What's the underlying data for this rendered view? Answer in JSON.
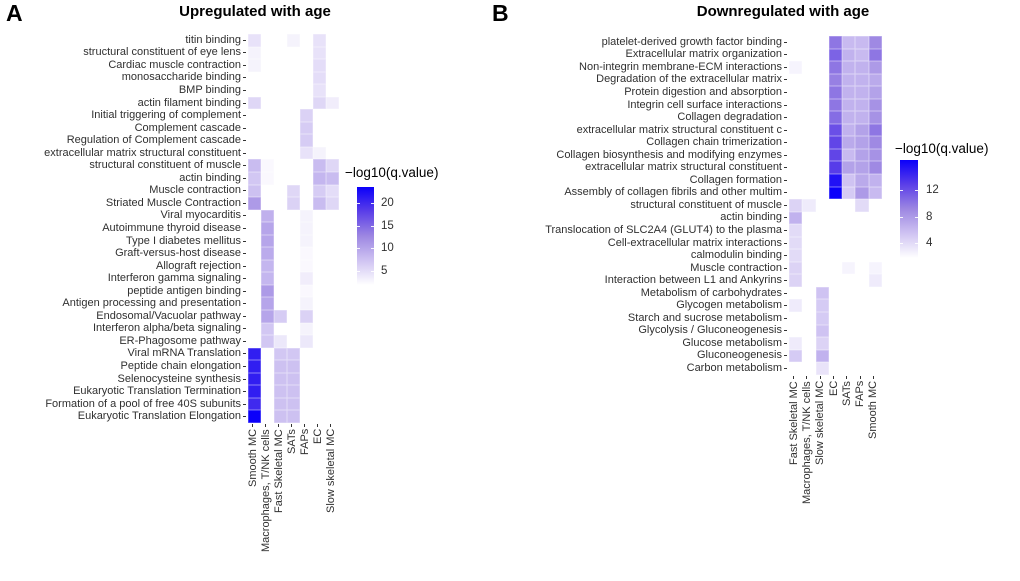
{
  "chart_data": [
    {
      "type": "heatmap",
      "panel_label": "A",
      "title": "Upregulated with age",
      "legend_title": "−log10(q.value)",
      "legend_ticks": [
        5,
        10,
        15,
        20
      ],
      "scale_domain": [
        1.9,
        23.6
      ],
      "x_categories": [
        "Smooth MC",
        "Macrophages, T/NK cells",
        "Fast Skeletal MC",
        "SATs",
        "FAPs",
        "EC",
        "Slow skeletal MC"
      ],
      "y_categories": [
        "titin binding",
        "structural constituent of eye lens",
        "Cardiac muscle contraction",
        "monosaccharide binding",
        "BMP binding",
        "actin filament binding",
        "Initial triggering of complement",
        "Complement cascade",
        "Regulation of Complement cascade",
        "extracellular matrix structural constituent",
        "structural constituent of muscle",
        "actin binding",
        "Muscle contraction",
        "Striated Muscle Contraction",
        "Viral myocarditis",
        "Autoimmune thyroid disease",
        "Type I diabetes mellitus",
        "Graft-versus-host disease",
        "Allograft rejection",
        "Interferon gamma signaling",
        "peptide antigen binding",
        "Antigen processing and presentation",
        "Endosomal/Vacuolar pathway",
        "Interferon alpha/beta signaling",
        "ER-Phagosome pathway",
        "Viral mRNA Translation",
        "Peptide chain elongation",
        "Selenocysteine synthesis",
        "Eukaryotic Translation Termination",
        "Formation of a pool of free 40S subunits",
        "Eukaryotic Translation Elongation"
      ],
      "cells": [
        [
          0,
          0,
          4.5
        ],
        [
          0,
          3,
          3
        ],
        [
          0,
          5,
          4.5
        ],
        [
          1,
          0,
          3
        ],
        [
          1,
          5,
          4.5
        ],
        [
          2,
          0,
          3
        ],
        [
          2,
          5,
          5
        ],
        [
          3,
          5,
          5
        ],
        [
          4,
          5,
          4.5
        ],
        [
          5,
          0,
          5.5
        ],
        [
          5,
          5,
          5.5
        ],
        [
          5,
          6,
          3.5
        ],
        [
          6,
          4,
          6
        ],
        [
          7,
          4,
          6.5
        ],
        [
          8,
          4,
          6.5
        ],
        [
          9,
          4,
          4.5
        ],
        [
          9,
          5,
          3
        ],
        [
          10,
          0,
          8
        ],
        [
          10,
          1,
          2.5
        ],
        [
          10,
          5,
          8
        ],
        [
          10,
          6,
          5.5
        ],
        [
          11,
          0,
          7
        ],
        [
          11,
          1,
          2.5
        ],
        [
          11,
          5,
          8.5
        ],
        [
          11,
          6,
          8
        ],
        [
          12,
          0,
          7.5
        ],
        [
          12,
          3,
          5.5
        ],
        [
          12,
          5,
          6.5
        ],
        [
          12,
          6,
          5
        ],
        [
          13,
          0,
          11
        ],
        [
          13,
          3,
          6
        ],
        [
          13,
          5,
          8
        ],
        [
          13,
          6,
          5.5
        ],
        [
          14,
          1,
          9
        ],
        [
          14,
          4,
          3
        ],
        [
          15,
          1,
          10
        ],
        [
          15,
          4,
          3
        ],
        [
          16,
          1,
          10
        ],
        [
          16,
          4,
          3
        ],
        [
          17,
          1,
          9.5
        ],
        [
          17,
          4,
          2.5
        ],
        [
          18,
          1,
          8.5
        ],
        [
          18,
          4,
          2.5
        ],
        [
          19,
          1,
          8.5
        ],
        [
          19,
          4,
          3.5
        ],
        [
          20,
          1,
          11
        ],
        [
          20,
          4,
          2.5
        ],
        [
          21,
          1,
          10
        ],
        [
          21,
          4,
          3
        ],
        [
          22,
          1,
          10
        ],
        [
          22,
          2,
          6.5
        ],
        [
          22,
          4,
          6
        ],
        [
          23,
          1,
          7
        ],
        [
          23,
          4,
          3
        ],
        [
          24,
          1,
          7
        ],
        [
          24,
          2,
          4
        ],
        [
          24,
          4,
          4
        ],
        [
          25,
          0,
          21
        ],
        [
          25,
          2,
          7
        ],
        [
          25,
          3,
          7
        ],
        [
          26,
          0,
          21
        ],
        [
          26,
          2,
          7.5
        ],
        [
          26,
          3,
          7.5
        ],
        [
          27,
          0,
          21
        ],
        [
          27,
          2,
          7.5
        ],
        [
          27,
          3,
          7.5
        ],
        [
          28,
          0,
          21
        ],
        [
          28,
          2,
          7.5
        ],
        [
          28,
          3,
          7.5
        ],
        [
          29,
          0,
          20
        ],
        [
          29,
          2,
          7.5
        ],
        [
          29,
          3,
          7.5
        ],
        [
          30,
          0,
          23.6
        ],
        [
          30,
          2,
          7.5
        ],
        [
          30,
          3,
          7.5
        ]
      ]
    },
    {
      "type": "heatmap",
      "panel_label": "B",
      "title": "Downregulated with age",
      "legend_title": "−log10(q.value)",
      "legend_ticks": [
        4,
        8,
        12
      ],
      "scale_domain": [
        1.8,
        16.5
      ],
      "x_categories": [
        "Fast Skeletal MC",
        "Macrophages, T/NK cells",
        "Slow skeletal MC",
        "EC",
        "SATs",
        "FAPs",
        "Smooth MC"
      ],
      "y_categories": [
        "platelet-derived growth factor binding",
        "Extracellular matrix organization",
        "Non-integrin membrane-ECM interactions",
        "Degradation of the extracellular matrix",
        "Protein digestion and absorption",
        "Integrin cell surface interactions",
        "Collagen degradation",
        "extracellular matrix structural constituent c",
        "Collagen chain trimerization",
        "Collagen biosynthesis and modifying enzymes",
        "extracellular matrix structural constituent",
        "Collagen formation",
        "Assembly of collagen fibrils and other multim",
        "structural constituent of muscle",
        "actin binding",
        "Translocation of SLC2A4 (GLUT4) to the plasma",
        "Cell-extracellular matrix interactions",
        "calmodulin binding",
        "Muscle contraction",
        "Interaction between L1 and Ankyrins",
        "Metabolism of carbohydrates",
        "Glycogen metabolism",
        "Starch and sucrose metabolism",
        "Glycolysis / Gluconeogenesis",
        "Glucose metabolism",
        "Gluconeogenesis",
        "Carbon metabolism"
      ],
      "cells": [
        [
          0,
          3,
          10
        ],
        [
          0,
          4,
          6
        ],
        [
          0,
          5,
          6
        ],
        [
          0,
          6,
          9
        ],
        [
          1,
          3,
          11
        ],
        [
          1,
          4,
          6.5
        ],
        [
          1,
          5,
          6
        ],
        [
          1,
          6,
          10
        ],
        [
          2,
          0,
          2.5
        ],
        [
          2,
          3,
          10
        ],
        [
          2,
          4,
          6.5
        ],
        [
          2,
          5,
          6.5
        ],
        [
          2,
          6,
          8
        ],
        [
          3,
          3,
          9.5
        ],
        [
          3,
          4,
          6.5
        ],
        [
          3,
          5,
          6.5
        ],
        [
          3,
          6,
          7
        ],
        [
          4,
          3,
          10
        ],
        [
          4,
          4,
          6.5
        ],
        [
          4,
          5,
          6.5
        ],
        [
          4,
          6,
          7.5
        ],
        [
          5,
          3,
          10
        ],
        [
          5,
          4,
          6.5
        ],
        [
          5,
          5,
          6.5
        ],
        [
          5,
          6,
          8.5
        ],
        [
          6,
          3,
          10.5
        ],
        [
          6,
          4,
          6.5
        ],
        [
          6,
          5,
          6.5
        ],
        [
          6,
          6,
          8.5
        ],
        [
          7,
          3,
          12
        ],
        [
          7,
          4,
          6.5
        ],
        [
          7,
          5,
          7.5
        ],
        [
          7,
          6,
          10
        ],
        [
          8,
          3,
          12.5
        ],
        [
          8,
          4,
          7
        ],
        [
          8,
          5,
          7.5
        ],
        [
          8,
          6,
          9
        ],
        [
          9,
          3,
          12.5
        ],
        [
          9,
          4,
          6
        ],
        [
          9,
          5,
          7.5
        ],
        [
          9,
          6,
          8.5
        ],
        [
          10,
          3,
          13
        ],
        [
          10,
          4,
          7.5
        ],
        [
          10,
          5,
          7.5
        ],
        [
          10,
          6,
          9
        ],
        [
          11,
          3,
          15.5
        ],
        [
          11,
          4,
          5.5
        ],
        [
          11,
          5,
          7
        ],
        [
          11,
          6,
          6.5
        ],
        [
          12,
          3,
          16.5
        ],
        [
          12,
          4,
          5
        ],
        [
          12,
          5,
          8
        ],
        [
          12,
          6,
          6
        ],
        [
          13,
          0,
          4.5
        ],
        [
          13,
          1,
          3
        ],
        [
          13,
          5,
          4
        ],
        [
          14,
          0,
          6.5
        ],
        [
          15,
          0,
          4
        ],
        [
          16,
          0,
          4
        ],
        [
          17,
          0,
          4
        ],
        [
          18,
          0,
          4.5
        ],
        [
          18,
          4,
          2.5
        ],
        [
          18,
          6,
          2.5
        ],
        [
          19,
          0,
          4.5
        ],
        [
          19,
          6,
          3
        ],
        [
          20,
          2,
          5.5
        ],
        [
          21,
          0,
          3
        ],
        [
          21,
          2,
          5
        ],
        [
          22,
          2,
          5
        ],
        [
          23,
          2,
          5.5
        ],
        [
          24,
          0,
          3
        ],
        [
          24,
          2,
          4.5
        ],
        [
          25,
          0,
          5
        ],
        [
          25,
          2,
          6.5
        ],
        [
          26,
          2,
          3.5
        ]
      ]
    }
  ],
  "colors": {
    "scale_low": "#FFFFFF",
    "scale_high": "#0B00FA",
    "scale_stops": [
      "#FFFFFF",
      "#CFC3F2",
      "#9D87E2",
      "#5B3FE8",
      "#0B00FA"
    ],
    "axis_text": "#303030",
    "title_text": "#000000"
  }
}
